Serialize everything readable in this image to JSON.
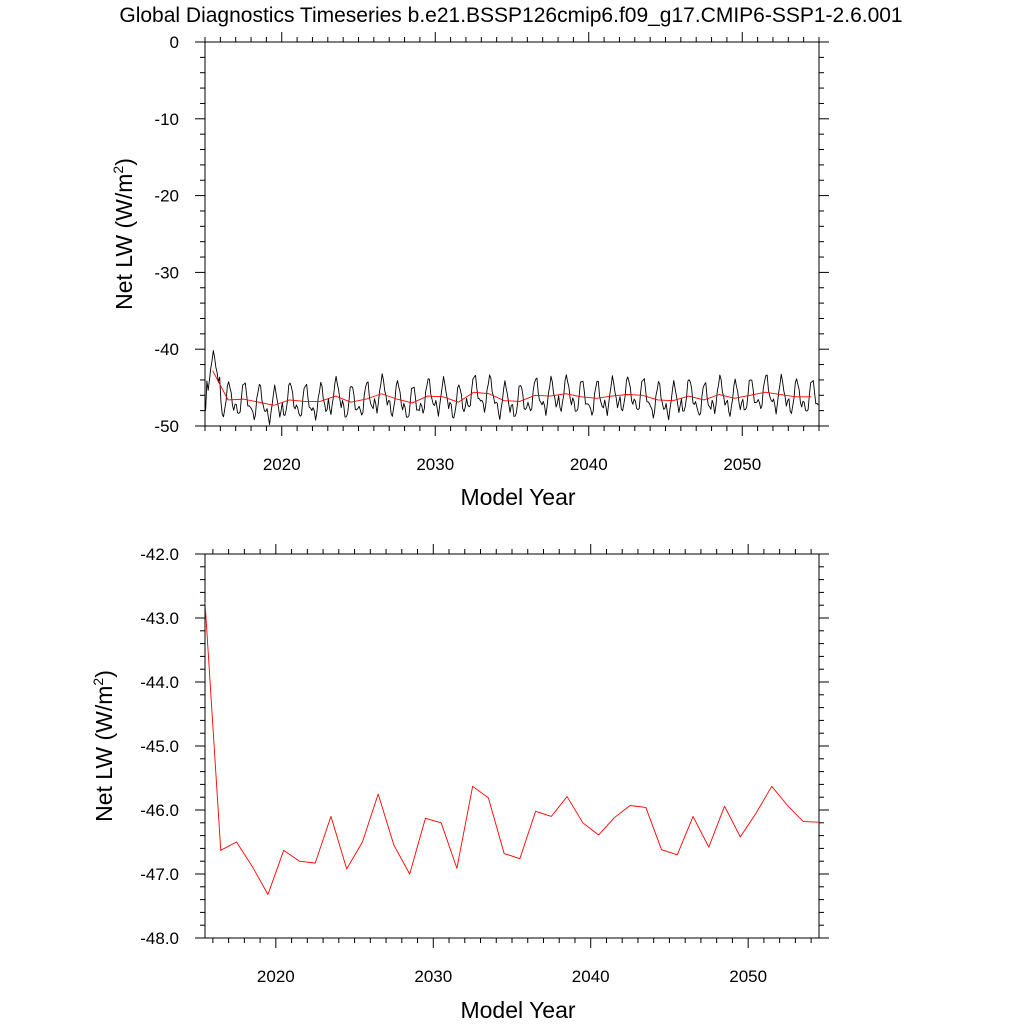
{
  "title": "Global Diagnostics Timeseries b.e21.BSSP126cmip6.f09_g17.CMIP6-SSP1-2.6.001",
  "chart_data": [
    {
      "type": "line",
      "xlabel": "Model Year",
      "ylabel": "Net LW (W/m",
      "ylabel_sup": "2",
      "ylabel_close": ")",
      "xlim": [
        2015,
        2055
      ],
      "ylim": [
        -50,
        0
      ],
      "x_ticks": [
        2020,
        2030,
        2040,
        2050
      ],
      "y_ticks": [
        0,
        -10,
        -20,
        -30,
        -40,
        -50
      ],
      "grid": false,
      "series": [
        {
          "kind": "monthly",
          "color": "#000000",
          "start": 2015.04,
          "step": 0.0833333,
          "annual_cycle_offsets": [
            -0.6,
            -1.6,
            -2.2,
            -1.4,
            0.2,
            1.6,
            2.3,
            1.9,
            0.6,
            -0.6,
            -1.2,
            -0.9
          ],
          "annual_means": [
            -42.8,
            -46.6,
            -46.5,
            -46.9,
            -47.3,
            -46.6,
            -46.8,
            -46.8,
            -46.1,
            -46.9,
            -46.5,
            -45.8,
            -46.5,
            -47.0,
            -46.1,
            -46.2,
            -46.9,
            -45.6,
            -45.8,
            -46.7,
            -46.8,
            -46.0,
            -46.1,
            -45.8,
            -46.2,
            -46.4,
            -46.1,
            -45.9,
            -46.0,
            -46.6,
            -46.7,
            -46.1,
            -46.6,
            -45.9,
            -46.4,
            -46.0,
            -45.6,
            -45.9,
            -46.2,
            -46.2
          ]
        },
        {
          "kind": "annual",
          "color": "#ff0000",
          "x": [
            2015.5,
            2016.5,
            2017.5,
            2018.5,
            2019.5,
            2020.5,
            2021.5,
            2022.5,
            2023.5,
            2024.5,
            2025.5,
            2026.5,
            2027.5,
            2028.5,
            2029.5,
            2030.5,
            2031.5,
            2032.5,
            2033.5,
            2034.5,
            2035.5,
            2036.5,
            2037.5,
            2038.5,
            2039.5,
            2040.5,
            2041.5,
            2042.5,
            2043.5,
            2044.5,
            2045.5,
            2046.5,
            2047.5,
            2048.5,
            2049.5,
            2050.5,
            2051.5,
            2052.5,
            2053.5,
            2054.5
          ],
          "y": [
            -42.8,
            -46.6,
            -46.5,
            -46.9,
            -47.3,
            -46.6,
            -46.8,
            -46.8,
            -46.1,
            -46.9,
            -46.5,
            -45.8,
            -46.5,
            -47.0,
            -46.1,
            -46.2,
            -46.9,
            -45.6,
            -45.8,
            -46.7,
            -46.8,
            -46.0,
            -46.1,
            -45.8,
            -46.2,
            -46.4,
            -46.1,
            -45.9,
            -46.0,
            -46.6,
            -46.7,
            -46.1,
            -46.6,
            -45.9,
            -46.4,
            -46.0,
            -45.6,
            -45.9,
            -46.2,
            -46.2
          ]
        }
      ]
    },
    {
      "type": "line",
      "xlabel": "Model Year",
      "ylabel": "Net LW (W/m",
      "ylabel_sup": "2",
      "ylabel_close": ")",
      "xlim": [
        2015.5,
        2054.5
      ],
      "ylim": [
        -48,
        -42
      ],
      "x_ticks": [
        2020,
        2030,
        2040,
        2050
      ],
      "y_ticks": [
        -42.0,
        -43.0,
        -44.0,
        -45.0,
        -46.0,
        -47.0,
        -48.0
      ],
      "y_tick_labels": [
        "-42.0",
        "-43.0",
        "-44.0",
        "-45.0",
        "-46.0",
        "-47.0",
        "-48.0"
      ],
      "grid": false,
      "series": [
        {
          "kind": "annual",
          "color": "#ff0000",
          "x": [
            2015.5,
            2016.5,
            2017.5,
            2018.5,
            2019.5,
            2020.5,
            2021.5,
            2022.5,
            2023.5,
            2024.5,
            2025.5,
            2026.5,
            2027.5,
            2028.5,
            2029.5,
            2030.5,
            2031.5,
            2032.5,
            2033.5,
            2034.5,
            2035.5,
            2036.5,
            2037.5,
            2038.5,
            2039.5,
            2040.5,
            2041.5,
            2042.5,
            2043.5,
            2044.5,
            2045.5,
            2046.5,
            2047.5,
            2048.5,
            2049.5,
            2050.5,
            2051.5,
            2052.5,
            2053.5,
            2054.5
          ],
          "y": [
            -42.75,
            -46.63,
            -46.5,
            -46.88,
            -47.32,
            -46.63,
            -46.8,
            -46.83,
            -46.1,
            -46.92,
            -46.5,
            -45.75,
            -46.55,
            -47.0,
            -46.13,
            -46.2,
            -46.91,
            -45.63,
            -45.81,
            -46.68,
            -46.76,
            -46.02,
            -46.1,
            -45.79,
            -46.2,
            -46.39,
            -46.12,
            -45.93,
            -45.96,
            -46.62,
            -46.7,
            -46.1,
            -46.58,
            -45.94,
            -46.42,
            -46.05,
            -45.63,
            -45.93,
            -46.18,
            -46.19
          ]
        }
      ]
    }
  ]
}
